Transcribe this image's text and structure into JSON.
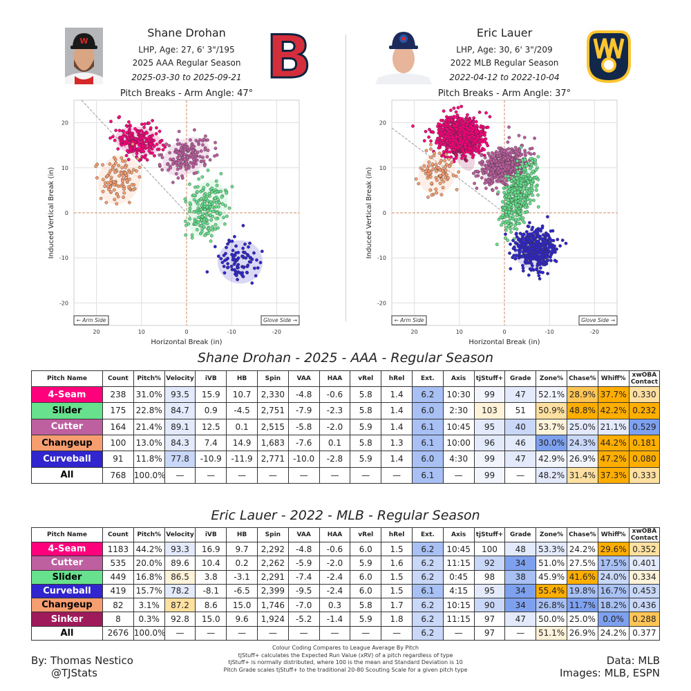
{
  "pitchers": [
    {
      "name": "Shane Drohan",
      "bio": "LHP, Age: 27, 6' 3\"/195",
      "season": "2025 AAA Regular Season",
      "dates": "2025-03-30 to 2025-09-21",
      "team_logo": "red-sox-logo",
      "headshot": "headshot-shane-drohan"
    },
    {
      "name": "Eric Lauer",
      "bio": "LHP, Age: 30, 6' 3\"/209",
      "season": "2022 MLB Regular Season",
      "dates": "2022-04-12 to 2022-10-04",
      "team_logo": "brewers-logo",
      "headshot": "headshot-eric-lauer"
    }
  ],
  "chart_data": [
    {
      "type": "scatter",
      "title": "Pitch Breaks - Arm Angle: 47°",
      "xlabel": "Horizontal Break (in)",
      "ylabel": "Induced Vertical Break (in)",
      "xlim": [
        25,
        -25
      ],
      "ylim": [
        -25,
        25
      ],
      "xticks": [
        20,
        10,
        0,
        -10,
        -20
      ],
      "yticks": [
        20,
        10,
        0,
        -10,
        -20
      ],
      "arm_angle_deg": 47,
      "arm_label": "← Arm Side",
      "glove_label": "Glove Side →",
      "grid": true,
      "series": [
        {
          "name": "4-Seam",
          "color": "#ff007d",
          "n": 238,
          "hb": 10.7,
          "ivb": 15.9,
          "sd_hb": 2.6,
          "sd_ivb": 1.6,
          "tilt": 10
        },
        {
          "name": "Slider",
          "color": "#67e18d",
          "n": 175,
          "hb": -4.5,
          "ivb": 0.9,
          "sd_hb": 2.2,
          "sd_ivb": 3.2,
          "tilt": 15
        },
        {
          "name": "Cutter",
          "color": "#be5fa0",
          "n": 164,
          "hb": 0.1,
          "ivb": 12.5,
          "sd_hb": 2.8,
          "sd_ivb": 1.9,
          "tilt": -30
        },
        {
          "name": "Changeup",
          "color": "#f79e70",
          "n": 100,
          "hb": 14.9,
          "ivb": 7.4,
          "sd_hb": 2.3,
          "sd_ivb": 2.8,
          "tilt": 20
        },
        {
          "name": "Curveball",
          "color": "#3025ce",
          "n": 91,
          "hb": -11.9,
          "ivb": -10.9,
          "sd_hb": 2.5,
          "sd_ivb": 2.4,
          "tilt": 0
        }
      ]
    },
    {
      "type": "scatter",
      "title": "Pitch Breaks - Arm Angle: 37°",
      "xlabel": "Horizontal Break (in)",
      "ylabel": "Induced Vertical Break (in)",
      "xlim": [
        25,
        -25
      ],
      "ylim": [
        -25,
        25
      ],
      "xticks": [
        20,
        10,
        0,
        -10,
        -20
      ],
      "yticks": [
        20,
        10,
        0,
        -10,
        -20
      ],
      "arm_angle_deg": 37,
      "arm_label": "← Arm Side",
      "glove_label": "Glove Side →",
      "grid": true,
      "series": [
        {
          "name": "4-Seam",
          "color": "#ff007d",
          "n": 1183,
          "hb": 9.7,
          "ivb": 16.9,
          "sd_hb": 2.3,
          "sd_ivb": 1.9,
          "tilt": 10
        },
        {
          "name": "Cutter",
          "color": "#be5fa0",
          "n": 535,
          "hb": 0.2,
          "ivb": 10.4,
          "sd_hb": 2.6,
          "sd_ivb": 1.8,
          "tilt": -30
        },
        {
          "name": "Slider",
          "color": "#67e18d",
          "n": 449,
          "hb": -3.1,
          "ivb": 3.8,
          "sd_hb": 1.5,
          "sd_ivb": 3.8,
          "tilt": 20
        },
        {
          "name": "Curveball",
          "color": "#3025ce",
          "n": 419,
          "hb": -6.5,
          "ivb": -8.1,
          "sd_hb": 2.2,
          "sd_ivb": 2.2,
          "tilt": 0
        },
        {
          "name": "Changeup",
          "color": "#f79e70",
          "n": 82,
          "hb": 15.0,
          "ivb": 8.6,
          "sd_hb": 2.0,
          "sd_ivb": 2.3,
          "tilt": 20
        },
        {
          "name": "Sinker",
          "color": "#9f1a5a",
          "n": 8,
          "hb": 9.6,
          "ivb": 15.0,
          "sd_hb": 1.2,
          "sd_ivb": 3.0,
          "tilt": -20
        }
      ]
    }
  ],
  "tables": [
    {
      "title": "Shane Drohan - 2025 - AAA - Regular Season",
      "headers": [
        "Pitch Name",
        "Count",
        "Pitch%",
        "Velocity",
        "iVB",
        "HB",
        "Spin",
        "VAA",
        "HAA",
        "vRel",
        "hRel",
        "Ext.",
        "Axis",
        "tjStuff+",
        "Grade",
        "Zone%",
        "Chase%",
        "Whiff%",
        "xwOBA Contact"
      ],
      "rows": [
        {
          "pitch": "4-Seam",
          "bg": "#ff007d",
          "fg": "#ffffff",
          "values": [
            "238",
            "31.0%",
            "93.5",
            "15.9",
            "10.7",
            "2,330",
            "-4.8",
            "-0.6",
            "5.8",
            "1.4",
            "6.2",
            "10:30",
            "99",
            "47",
            "52.1%",
            "28.9%",
            "37.7%",
            "0.330"
          ],
          "colors": [
            "W",
            "W",
            "b1",
            "W",
            "W",
            "W",
            "W",
            "W",
            "W",
            "W",
            "b3",
            "W",
            "b0",
            "b1",
            "b0",
            "o3",
            "o4",
            "o2"
          ]
        },
        {
          "pitch": "Slider",
          "bg": "#67e18d",
          "fg": "#000000",
          "values": [
            "175",
            "22.8%",
            "84.7",
            "0.9",
            "-4.5",
            "2,751",
            "-7.9",
            "-2.3",
            "5.8",
            "1.4",
            "6.0",
            "2:30",
            "103",
            "51",
            "50.9%",
            "48.8%",
            "42.2%",
            "0.232"
          ],
          "colors": [
            "W",
            "W",
            "b1",
            "W",
            "W",
            "W",
            "W",
            "W",
            "W",
            "W",
            "b3",
            "W",
            "o1",
            "W",
            "o2",
            "o4",
            "o4",
            "o4"
          ]
        },
        {
          "pitch": "Cutter",
          "bg": "#be5fa0",
          "fg": "#ffffff",
          "values": [
            "164",
            "21.4%",
            "89.1",
            "12.5",
            "0.1",
            "2,515",
            "-5.8",
            "-2.0",
            "5.9",
            "1.4",
            "6.1",
            "10:45",
            "95",
            "40",
            "53.7%",
            "25.0%",
            "21.1%",
            "0.529"
          ],
          "colors": [
            "W",
            "W",
            "b1",
            "W",
            "W",
            "W",
            "W",
            "W",
            "W",
            "W",
            "b3",
            "W",
            "b1",
            "b2",
            "o1",
            "b1",
            "b1",
            "b4"
          ]
        },
        {
          "pitch": "Changeup",
          "bg": "#f79e70",
          "fg": "#000000",
          "values": [
            "100",
            "13.0%",
            "84.3",
            "7.4",
            "14.9",
            "1,683",
            "-7.6",
            "0.1",
            "5.8",
            "1.3",
            "6.1",
            "10:00",
            "96",
            "46",
            "30.0%",
            "24.3%",
            "44.2%",
            "0.181"
          ],
          "colors": [
            "W",
            "W",
            "b1",
            "W",
            "W",
            "W",
            "W",
            "W",
            "W",
            "W",
            "b3",
            "W",
            "b1",
            "b1",
            "b4",
            "b2",
            "o4",
            "o4"
          ]
        },
        {
          "pitch": "Curveball",
          "bg": "#3025ce",
          "fg": "#ffffff",
          "values": [
            "91",
            "11.8%",
            "77.8",
            "-10.9",
            "-11.9",
            "2,771",
            "-10.0",
            "-2.8",
            "5.9",
            "1.4",
            "6.0",
            "4:30",
            "99",
            "47",
            "42.9%",
            "26.9%",
            "47.2%",
            "0.080"
          ],
          "colors": [
            "W",
            "W",
            "b2",
            "W",
            "W",
            "W",
            "W",
            "W",
            "W",
            "W",
            "b3",
            "W",
            "b0",
            "b1",
            "b0",
            "b0",
            "o4",
            "o4"
          ]
        },
        {
          "pitch": "All",
          "bg": "#ffffff",
          "fg": "#000000",
          "values": [
            "768",
            "100.0%",
            "—",
            "—",
            "—",
            "—",
            "—",
            "—",
            "—",
            "—",
            "6.1",
            "—",
            "99",
            "—",
            "48.2%",
            "31.4%",
            "37.3%",
            "0.333"
          ],
          "colors": [
            "W",
            "W",
            "W",
            "W",
            "W",
            "W",
            "W",
            "W",
            "W",
            "W",
            "b3",
            "W",
            "b0",
            "W",
            "b1",
            "o2",
            "o4",
            "o2"
          ]
        }
      ]
    },
    {
      "title": "Eric Lauer - 2022 - MLB - Regular Season",
      "headers": [
        "Pitch Name",
        "Count",
        "Pitch%",
        "Velocity",
        "iVB",
        "HB",
        "Spin",
        "VAA",
        "HAA",
        "vRel",
        "hRel",
        "Ext.",
        "Axis",
        "tjStuff+",
        "Grade",
        "Zone%",
        "Chase%",
        "Whiff%",
        "xwOBA Contact"
      ],
      "rows": [
        {
          "pitch": "4-Seam",
          "bg": "#ff007d",
          "fg": "#ffffff",
          "values": [
            "1183",
            "44.2%",
            "93.3",
            "16.9",
            "9.7",
            "2,292",
            "-4.8",
            "-0.6",
            "6.0",
            "1.5",
            "6.2",
            "10:45",
            "100",
            "48",
            "53.3%",
            "24.2%",
            "29.6%",
            "0.352"
          ],
          "colors": [
            "W",
            "W",
            "b1",
            "W",
            "W",
            "W",
            "W",
            "W",
            "W",
            "W",
            "b3",
            "W",
            "W",
            "b1",
            "b1",
            "W",
            "o4",
            "o2"
          ]
        },
        {
          "pitch": "Cutter",
          "bg": "#be5fa0",
          "fg": "#ffffff",
          "values": [
            "535",
            "20.0%",
            "89.6",
            "10.4",
            "0.2",
            "2,262",
            "-5.9",
            "-2.0",
            "5.9",
            "1.6",
            "6.2",
            "11:15",
            "92",
            "34",
            "51.0%",
            "27.5%",
            "17.5%",
            "0.401"
          ],
          "colors": [
            "W",
            "W",
            "W",
            "W",
            "W",
            "W",
            "W",
            "W",
            "W",
            "W",
            "b2",
            "W",
            "b2",
            "b4",
            "W",
            "W",
            "b3",
            "b1"
          ]
        },
        {
          "pitch": "Slider",
          "bg": "#67e18d",
          "fg": "#000000",
          "values": [
            "449",
            "16.8%",
            "86.5",
            "3.8",
            "-3.1",
            "2,291",
            "-7.4",
            "-2.4",
            "6.0",
            "1.5",
            "6.2",
            "0:45",
            "98",
            "38",
            "45.9%",
            "41.6%",
            "24.0%",
            "0.334"
          ],
          "colors": [
            "W",
            "W",
            "o1",
            "W",
            "W",
            "W",
            "W",
            "W",
            "W",
            "W",
            "b2",
            "W",
            "W",
            "b3",
            "W",
            "o4",
            "b2",
            "o1"
          ]
        },
        {
          "pitch": "Curveball",
          "bg": "#3025ce",
          "fg": "#ffffff",
          "values": [
            "419",
            "15.7%",
            "78.2",
            "-8.1",
            "-6.5",
            "2,399",
            "-9.5",
            "-2.4",
            "6.0",
            "1.5",
            "6.1",
            "4:15",
            "95",
            "34",
            "55.4%",
            "19.8%",
            "16.7%",
            "0.453"
          ],
          "colors": [
            "W",
            "W",
            "b1",
            "W",
            "W",
            "W",
            "W",
            "W",
            "W",
            "W",
            "b3",
            "W",
            "b1",
            "b4",
            "o4",
            "b3",
            "b3",
            "b2"
          ]
        },
        {
          "pitch": "Changeup",
          "bg": "#f79e70",
          "fg": "#000000",
          "values": [
            "82",
            "3.1%",
            "87.2",
            "8.6",
            "15.0",
            "1,746",
            "-7.0",
            "0.3",
            "5.8",
            "1.7",
            "6.2",
            "10:15",
            "90",
            "34",
            "26.8%",
            "11.7%",
            "18.2%",
            "0.436"
          ],
          "colors": [
            "W",
            "W",
            "o2",
            "W",
            "W",
            "W",
            "W",
            "W",
            "W",
            "W",
            "b2",
            "W",
            "b2",
            "b4",
            "b3",
            "b4",
            "b3",
            "b2"
          ]
        },
        {
          "pitch": "Sinker",
          "bg": "#9f1a5a",
          "fg": "#ffffff",
          "values": [
            "8",
            "0.3%",
            "92.8",
            "15.0",
            "9.6",
            "1,924",
            "-5.2",
            "-1.4",
            "5.9",
            "1.8",
            "6.2",
            "11:15",
            "97",
            "47",
            "50.0%",
            "25.0%",
            "0.0%",
            "0.288"
          ],
          "colors": [
            "W",
            "W",
            "W",
            "W",
            "W",
            "W",
            "W",
            "W",
            "W",
            "W",
            "b2",
            "W",
            "W",
            "b1",
            "W",
            "W",
            "b4",
            "o3"
          ]
        },
        {
          "pitch": "All",
          "bg": "#ffffff",
          "fg": "#000000",
          "values": [
            "2676",
            "100.0%",
            "—",
            "—",
            "—",
            "—",
            "—",
            "—",
            "—",
            "—",
            "6.2",
            "—",
            "97",
            "—",
            "51.1%",
            "26.9%",
            "24.2%",
            "0.377"
          ],
          "colors": [
            "W",
            "W",
            "W",
            "W",
            "W",
            "W",
            "W",
            "W",
            "W",
            "W",
            "b2",
            "W",
            "W",
            "W",
            "o1",
            "W",
            "W",
            "W"
          ]
        }
      ]
    }
  ],
  "cell_palette": {
    "W": "#ffffff",
    "b0": "#f3f5fd",
    "b1": "#e3eafb",
    "b2": "#c9d7f8",
    "b3": "#a8c0f4",
    "b4": "#7ea1ef",
    "o1": "#fff3da",
    "o2": "#ffe0a0",
    "o3": "#ffc556",
    "o4": "#ffae00"
  },
  "footer": {
    "author": "By: Thomas Nestico",
    "handle": "@TJStats",
    "notes": [
      "Colour Coding Compares to League Average By Pitch",
      "tjStuff+ calculates the Expected Run Value (xRV) of a pitch regardless of type",
      "tjStuff+ is normally distributed, where 100 is the mean and Standard Deviation is 10",
      "Pitch Grade scales tjStuff+ to the traditional 20-80 Scouting Scale for a given pitch type"
    ],
    "data_credit": "Data: MLB",
    "images_credit": "Images: MLB, ESPN"
  }
}
